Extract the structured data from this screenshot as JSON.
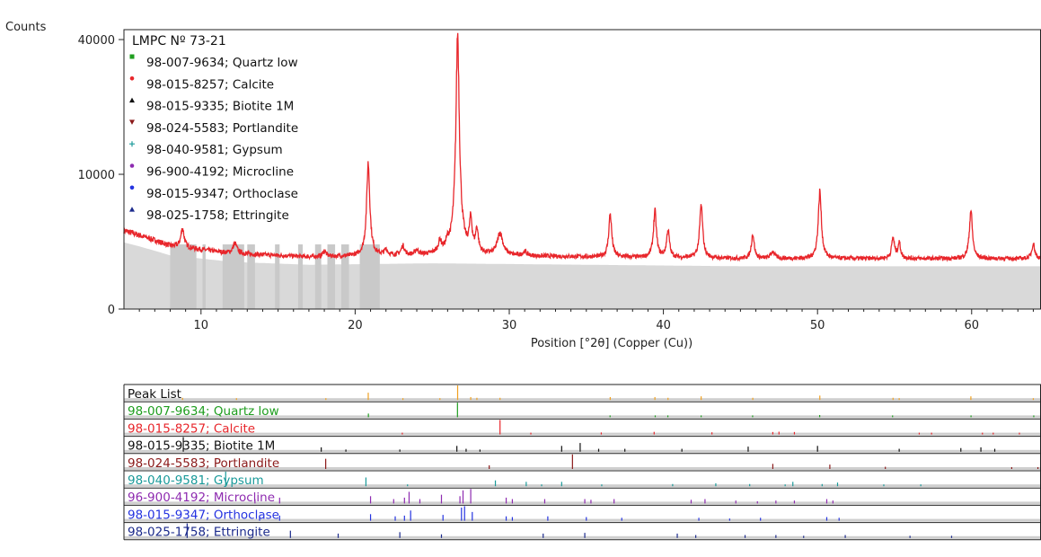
{
  "chart_data": [
    {
      "type": "line",
      "title": "LMPC Nº 73-21",
      "ylabel": "Counts",
      "xlabel": "Position [°2θ] (Copper (Cu))",
      "xlim": [
        5,
        64.5
      ],
      "ylim": [
        0,
        43000
      ],
      "y_scale": "sqrt",
      "xticks": [
        10,
        20,
        30,
        40,
        50,
        60
      ],
      "xtick_labels": [
        "10",
        "20",
        "30",
        "40",
        "50",
        "60"
      ],
      "yticks": [
        0,
        10000,
        40000
      ],
      "ytick_labels": [
        "0",
        "10000",
        "40000"
      ],
      "grid": false,
      "legend_position": "top-left",
      "legend": [
        {
          "label": "98-007-9634; Quartz low",
          "color": "#1f9e1f",
          "marker": "square"
        },
        {
          "label": "98-015-8257; Calcite",
          "color": "#e8262b",
          "marker": "circle"
        },
        {
          "label": "98-015-9335; Biotite 1M",
          "color": "#111111",
          "marker": "triangle"
        },
        {
          "label": "98-024-5583; Portlandite",
          "color": "#8b1a1a",
          "marker": "triangle-down"
        },
        {
          "label": "98-040-9581; Gypsum",
          "color": "#1a9a9a",
          "marker": "plus"
        },
        {
          "label": "96-900-4192; Microcline",
          "color": "#8e2bb0",
          "marker": "circle"
        },
        {
          "label": "98-015-9347; Orthoclase",
          "color": "#2433e0",
          "marker": "circle"
        },
        {
          "label": "98-025-1758; Ettringite",
          "color": "#1b2a8c",
          "marker": "triangle"
        }
      ],
      "series": [
        {
          "color": "#e8262b",
          "background": [
            [
              5,
              3400
            ],
            [
              8,
              2200
            ],
            [
              12,
              1700
            ],
            [
              17,
              1500
            ],
            [
              25,
              1600
            ],
            [
              35,
              1500
            ],
            [
              45,
              1400
            ],
            [
              55,
              1400
            ],
            [
              64.5,
              1400
            ]
          ],
          "peaks": [
            [
              8.8,
              1500,
              0.12
            ],
            [
              12.2,
              700,
              0.15
            ],
            [
              18.0,
              350,
              0.12
            ],
            [
              20.85,
              10200,
              0.1
            ],
            [
              22.0,
              350,
              0.12
            ],
            [
              23.1,
              600,
              0.12
            ],
            [
              24.0,
              300,
              0.12
            ],
            [
              25.5,
              800,
              0.12
            ],
            [
              26.0,
              550,
              0.12
            ],
            [
              26.65,
              40500,
              0.1
            ],
            [
              27.5,
              2700,
              0.1
            ],
            [
              27.9,
              1800,
              0.1
            ],
            [
              29.4,
              1600,
              0.2
            ],
            [
              31.0,
              250,
              0.15
            ],
            [
              36.55,
              3500,
              0.1
            ],
            [
              39.45,
              3800,
              0.1
            ],
            [
              40.3,
              2000,
              0.1
            ],
            [
              42.45,
              4500,
              0.1
            ],
            [
              45.8,
              1700,
              0.1
            ],
            [
              47.1,
              400,
              0.15
            ],
            [
              50.15,
              6200,
              0.1
            ],
            [
              54.9,
              1400,
              0.1
            ],
            [
              55.3,
              1000,
              0.1
            ],
            [
              59.95,
              4000,
              0.1
            ],
            [
              64.0,
              1000,
              0.1
            ]
          ],
          "bands": [
            [
              8.0,
              9.7
            ],
            [
              10.1,
              10.3
            ],
            [
              11.4,
              12.8
            ],
            [
              13.0,
              13.5
            ],
            [
              14.8,
              15.1
            ],
            [
              16.3,
              16.6
            ],
            [
              17.4,
              17.8
            ],
            [
              18.2,
              18.7
            ],
            [
              19.1,
              19.6
            ],
            [
              20.3,
              21.6
            ]
          ]
        }
      ]
    },
    {
      "type": "table",
      "xlim": [
        5,
        64.5
      ],
      "rows": [
        {
          "label": "Peak List",
          "color": "#111111",
          "bar_color": "#f0a020",
          "lines": [
            [
              8.8,
              0.15
            ],
            [
              12.3,
              0.1
            ],
            [
              18.1,
              0.1
            ],
            [
              20.85,
              0.5
            ],
            [
              23.1,
              0.1
            ],
            [
              25.5,
              0.1
            ],
            [
              26.65,
              1.0
            ],
            [
              27.5,
              0.2
            ],
            [
              27.9,
              0.15
            ],
            [
              29.4,
              0.15
            ],
            [
              36.55,
              0.2
            ],
            [
              39.45,
              0.2
            ],
            [
              40.3,
              0.15
            ],
            [
              42.45,
              0.25
            ],
            [
              45.8,
              0.15
            ],
            [
              50.15,
              0.3
            ],
            [
              54.9,
              0.15
            ],
            [
              55.3,
              0.1
            ],
            [
              59.95,
              0.25
            ],
            [
              64.0,
              0.1
            ]
          ]
        },
        {
          "label": "98-007-9634; Quartz low",
          "color": "#1f9e1f",
          "bar_color": "#1f9e1f",
          "lines": [
            [
              20.86,
              0.25
            ],
            [
              26.64,
              1.0
            ],
            [
              36.54,
              0.1
            ],
            [
              39.47,
              0.1
            ],
            [
              40.29,
              0.05
            ],
            [
              42.45,
              0.1
            ],
            [
              45.79,
              0.05
            ],
            [
              50.14,
              0.15
            ],
            [
              54.87,
              0.05
            ],
            [
              59.96,
              0.1
            ],
            [
              64.03,
              0.05
            ]
          ]
        },
        {
          "label": "98-015-8257; Calcite",
          "color": "#e8262b",
          "bar_color": "#e8262b",
          "lines": [
            [
              23.06,
              0.08
            ],
            [
              29.4,
              1.0
            ],
            [
              31.4,
              0.03
            ],
            [
              35.97,
              0.14
            ],
            [
              39.4,
              0.18
            ],
            [
              43.15,
              0.15
            ],
            [
              47.1,
              0.17
            ],
            [
              47.5,
              0.19
            ],
            [
              48.5,
              0.17
            ],
            [
              56.6,
              0.03
            ],
            [
              57.4,
              0.08
            ],
            [
              60.7,
              0.04
            ],
            [
              61.4,
              0.02
            ],
            [
              63.1,
              0.02
            ],
            [
              64.7,
              0.03
            ]
          ]
        },
        {
          "label": "98-015-9335; Biotite 1M",
          "color": "#111111",
          "bar_color": "#111111",
          "lines": [
            [
              8.85,
              1.0
            ],
            [
              17.8,
              0.3
            ],
            [
              19.4,
              0.15
            ],
            [
              22.9,
              0.15
            ],
            [
              26.6,
              0.4
            ],
            [
              27.2,
              0.2
            ],
            [
              28.1,
              0.15
            ],
            [
              33.4,
              0.4
            ],
            [
              34.6,
              0.6
            ],
            [
              35.8,
              0.2
            ],
            [
              37.5,
              0.2
            ],
            [
              41.2,
              0.2
            ],
            [
              45.5,
              0.35
            ],
            [
              50.0,
              0.4
            ],
            [
              55.3,
              0.2
            ],
            [
              59.3,
              0.25
            ],
            [
              60.6,
              0.3
            ],
            [
              61.5,
              0.2
            ]
          ]
        },
        {
          "label": "98-024-5583; Portlandite",
          "color": "#8b1a1a",
          "bar_color": "#8b1a1a",
          "lines": [
            [
              18.09,
              0.7
            ],
            [
              28.7,
              0.25
            ],
            [
              34.1,
              1.0
            ],
            [
              47.1,
              0.35
            ],
            [
              50.8,
              0.3
            ],
            [
              54.4,
              0.15
            ],
            [
              62.6,
              0.1
            ],
            [
              64.3,
              0.1
            ]
          ]
        },
        {
          "label": "98-040-9581; Gypsum",
          "color": "#1a9a9a",
          "bar_color": "#1a9a9a",
          "lines": [
            [
              11.6,
              1.0
            ],
            [
              20.7,
              0.6
            ],
            [
              23.4,
              0.1
            ],
            [
              29.1,
              0.4
            ],
            [
              31.1,
              0.3
            ],
            [
              32.1,
              0.1
            ],
            [
              33.4,
              0.3
            ],
            [
              36.0,
              0.1
            ],
            [
              40.6,
              0.15
            ],
            [
              43.4,
              0.2
            ],
            [
              45.6,
              0.15
            ],
            [
              47.9,
              0.1
            ],
            [
              48.4,
              0.3
            ],
            [
              50.3,
              0.15
            ],
            [
              51.3,
              0.25
            ],
            [
              54.3,
              0.1
            ],
            [
              56.7,
              0.1
            ]
          ]
        },
        {
          "label": "96-900-4192; Microcline",
          "color": "#8e2bb0",
          "bar_color": "#8e2bb0",
          "lines": [
            [
              13.5,
              0.3
            ],
            [
              15.1,
              0.4
            ],
            [
              21.0,
              0.5
            ],
            [
              22.5,
              0.3
            ],
            [
              23.2,
              0.4
            ],
            [
              23.5,
              0.8
            ],
            [
              24.2,
              0.3
            ],
            [
              25.6,
              0.6
            ],
            [
              26.8,
              0.5
            ],
            [
              27.0,
              0.9
            ],
            [
              27.5,
              1.0
            ],
            [
              29.8,
              0.4
            ],
            [
              30.2,
              0.3
            ],
            [
              32.3,
              0.3
            ],
            [
              34.9,
              0.3
            ],
            [
              35.3,
              0.25
            ],
            [
              36.8,
              0.3
            ],
            [
              41.8,
              0.25
            ],
            [
              42.7,
              0.3
            ],
            [
              44.7,
              0.2
            ],
            [
              46.1,
              0.15
            ],
            [
              47.3,
              0.2
            ],
            [
              48.5,
              0.2
            ],
            [
              50.6,
              0.3
            ],
            [
              51.0,
              0.2
            ]
          ]
        },
        {
          "label": "98-015-9347; Orthoclase",
          "color": "#2433e0",
          "bar_color": "#2433e0",
          "lines": [
            [
              13.8,
              0.3
            ],
            [
              15.1,
              0.35
            ],
            [
              21.0,
              0.45
            ],
            [
              22.6,
              0.3
            ],
            [
              23.2,
              0.35
            ],
            [
              23.6,
              0.7
            ],
            [
              25.7,
              0.4
            ],
            [
              26.9,
              0.9
            ],
            [
              27.1,
              1.0
            ],
            [
              27.6,
              0.6
            ],
            [
              29.8,
              0.3
            ],
            [
              30.2,
              0.25
            ],
            [
              32.5,
              0.3
            ],
            [
              35.0,
              0.25
            ],
            [
              37.3,
              0.2
            ],
            [
              42.3,
              0.2
            ],
            [
              44.3,
              0.15
            ],
            [
              46.3,
              0.2
            ],
            [
              50.6,
              0.25
            ],
            [
              51.4,
              0.2
            ]
          ]
        },
        {
          "label": "98-025-1758; Ettringite",
          "color": "#1b2a8c",
          "bar_color": "#1b2a8c",
          "lines": [
            [
              9.1,
              1.0
            ],
            [
              15.8,
              0.5
            ],
            [
              18.9,
              0.3
            ],
            [
              22.9,
              0.4
            ],
            [
              25.6,
              0.25
            ],
            [
              32.2,
              0.3
            ],
            [
              34.9,
              0.35
            ],
            [
              40.9,
              0.3
            ],
            [
              42.1,
              0.2
            ],
            [
              45.3,
              0.2
            ],
            [
              47.3,
              0.2
            ],
            [
              49.1,
              0.15
            ],
            [
              51.8,
              0.2
            ],
            [
              56.0,
              0.15
            ],
            [
              58.7,
              0.15
            ]
          ]
        }
      ]
    }
  ]
}
